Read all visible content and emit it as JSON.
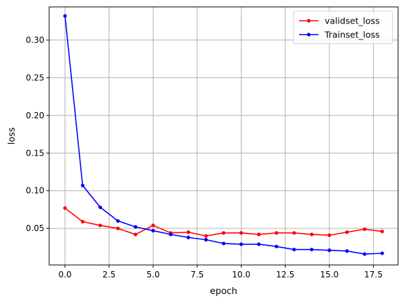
{
  "chart_data": {
    "type": "line",
    "xlabel": "epoch",
    "ylabel": "loss",
    "xlim": [
      -0.9,
      18.9
    ],
    "ylim": [
      0.0015,
      0.344
    ],
    "xticks": [
      0.0,
      2.5,
      5.0,
      7.5,
      10.0,
      12.5,
      15.0,
      17.5
    ],
    "xtick_labels": [
      "0.0",
      "2.5",
      "5.0",
      "7.5",
      "10.0",
      "12.5",
      "15.0",
      "17.5"
    ],
    "yticks": [
      0.05,
      0.1,
      0.15,
      0.2,
      0.25,
      0.3
    ],
    "ytick_labels": [
      "0.05",
      "0.10",
      "0.15",
      "0.20",
      "0.25",
      "0.30"
    ],
    "grid": true,
    "legend_position": "top-right",
    "x": [
      0,
      1,
      2,
      3,
      4,
      5,
      6,
      7,
      8,
      9,
      10,
      11,
      12,
      13,
      14,
      15,
      16,
      17,
      18
    ],
    "series": [
      {
        "name": "validset_loss",
        "color": "#ff0000",
        "marker": "dot",
        "values": [
          0.077,
          0.059,
          0.054,
          0.05,
          0.042,
          0.054,
          0.044,
          0.045,
          0.04,
          0.044,
          0.044,
          0.042,
          0.044,
          0.044,
          0.042,
          0.041,
          0.045,
          0.049,
          0.046
        ]
      },
      {
        "name": "Trainset_loss",
        "color": "#0000ff",
        "marker": "dot",
        "values": [
          0.332,
          0.107,
          0.078,
          0.06,
          0.052,
          0.047,
          0.042,
          0.038,
          0.035,
          0.03,
          0.029,
          0.029,
          0.026,
          0.022,
          0.022,
          0.021,
          0.02,
          0.016,
          0.017
        ]
      }
    ]
  }
}
